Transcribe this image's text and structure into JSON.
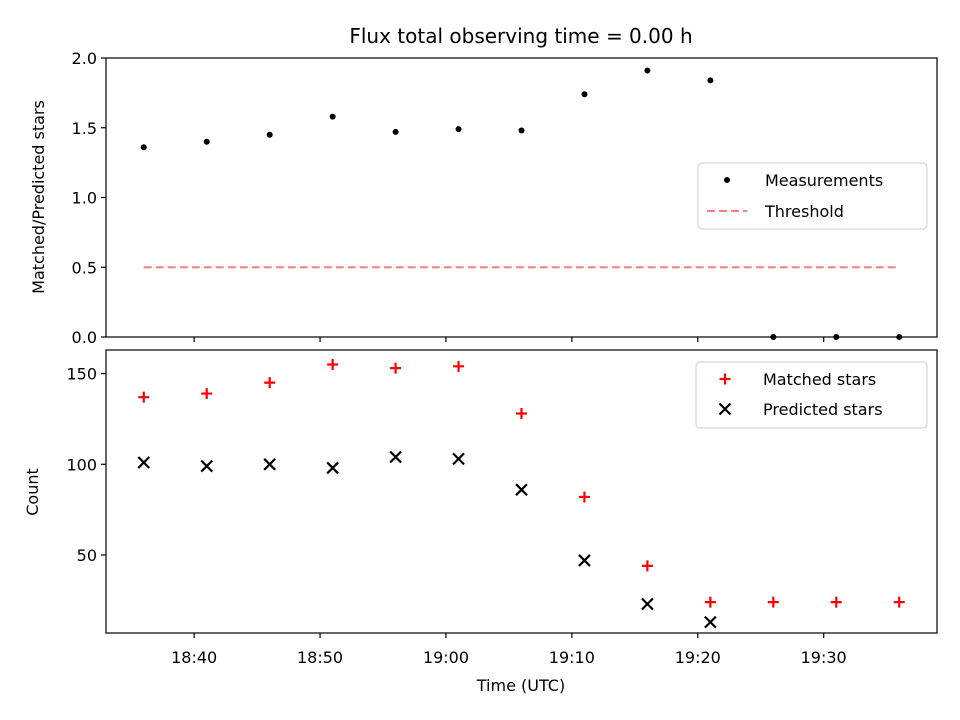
{
  "figure": {
    "title": "Flux total observing time = 0.00 h"
  },
  "chart_data": [
    {
      "type": "scatter",
      "title": "Flux total observing time = 0.00 h",
      "xlabel": "",
      "ylabel": "Matched/Predicted stars",
      "xlim": [
        "18:33",
        "19:39"
      ],
      "ylim": [
        0,
        2.0
      ],
      "yticks": [
        "0.0",
        "0.5",
        "1.0",
        "1.5",
        "2.0"
      ],
      "legend_position": "center-right",
      "series": [
        {
          "name": "Measurements",
          "marker": "dot",
          "color": "#000000",
          "x": [
            "18:36",
            "18:41",
            "18:46",
            "18:51",
            "18:56",
            "19:01",
            "19:06",
            "19:11",
            "19:16",
            "19:21",
            "19:26",
            "19:31",
            "19:36"
          ],
          "values": [
            1.36,
            1.4,
            1.45,
            1.58,
            1.47,
            1.49,
            1.48,
            1.74,
            1.91,
            1.84,
            0.0,
            0.0,
            0.0
          ]
        },
        {
          "name": "Threshold",
          "marker": "dashed-line",
          "color": "#ff7f7f",
          "x": [
            "18:36",
            "19:36"
          ],
          "values": [
            0.5,
            0.5
          ]
        }
      ]
    },
    {
      "type": "scatter",
      "title": "",
      "xlabel": "Time (UTC)",
      "ylabel": "Count",
      "xlim": [
        "18:33",
        "19:39"
      ],
      "ylim": [
        7,
        163
      ],
      "yticks": [
        "50",
        "100",
        "150"
      ],
      "xticks": [
        "18:40",
        "18:50",
        "19:00",
        "19:10",
        "19:20",
        "19:30"
      ],
      "legend_position": "top-right",
      "series": [
        {
          "name": "Matched stars",
          "marker": "plus",
          "color": "#ff0000",
          "x": [
            "18:36",
            "18:41",
            "18:46",
            "18:51",
            "18:56",
            "19:01",
            "19:06",
            "19:11",
            "19:16",
            "19:21",
            "19:26",
            "19:31",
            "19:36"
          ],
          "values": [
            137,
            139,
            145,
            155,
            153,
            154,
            128,
            82,
            44,
            24,
            24,
            24,
            24
          ]
        },
        {
          "name": "Predicted stars",
          "marker": "x",
          "color": "#000000",
          "x": [
            "18:36",
            "18:41",
            "18:46",
            "18:51",
            "18:56",
            "19:01",
            "19:06",
            "19:11",
            "19:16",
            "19:21"
          ],
          "values": [
            101,
            99,
            100,
            98,
            104,
            103,
            86,
            47,
            23,
            13
          ]
        }
      ]
    }
  ]
}
